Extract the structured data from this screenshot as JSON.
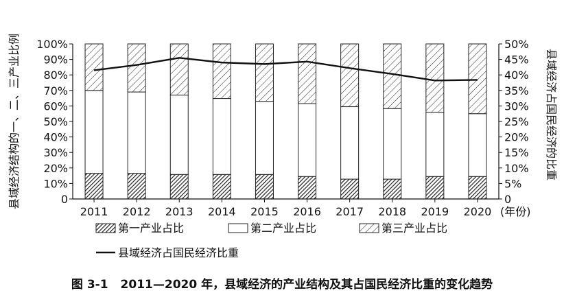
{
  "chart_data": {
    "type": "bar",
    "stacked": true,
    "categories": [
      "2011",
      "2012",
      "2013",
      "2014",
      "2015",
      "2016",
      "2017",
      "2018",
      "2019",
      "2020"
    ],
    "series": [
      {
        "name": "第一产业占比",
        "axis": "left",
        "pattern": "dense-hatch",
        "values": [
          16.5,
          16.5,
          15.8,
          15.8,
          15.8,
          14.5,
          12.8,
          12.8,
          14.5,
          14.5
        ]
      },
      {
        "name": "第二产业占比",
        "axis": "left",
        "pattern": "white",
        "values": [
          53.5,
          52.5,
          51.2,
          49.0,
          47.2,
          47.0,
          46.7,
          45.5,
          41.5,
          40.5
        ]
      },
      {
        "name": "第三产业占比",
        "axis": "left",
        "pattern": "sparse-hatch",
        "values": [
          30.0,
          31.0,
          33.0,
          35.2,
          37.0,
          38.5,
          40.5,
          41.7,
          44.0,
          45.0
        ]
      },
      {
        "name": "县域经济占国民经济比重",
        "axis": "right",
        "type": "line",
        "values": [
          41.5,
          43.2,
          45.5,
          44.0,
          43.5,
          44.3,
          42.2,
          40.3,
          38.2,
          38.4
        ]
      }
    ],
    "left_axis": {
      "label": "县域经济结构的一、二、三产业比例",
      "ticks": [
        "0",
        "10%",
        "20%",
        "30%",
        "40%",
        "50%",
        "60%",
        "70%",
        "80%",
        "90%",
        "100%"
      ],
      "ylim": [
        0,
        100
      ]
    },
    "right_axis": {
      "label": "县域经济占国民经济的比重",
      "ticks": [
        "0",
        "5%",
        "10%",
        "15%",
        "20%",
        "25%",
        "30%",
        "35%",
        "40%",
        "45%",
        "50%"
      ],
      "ylim": [
        0,
        50
      ]
    },
    "x_unit": "(年份)",
    "legend_position": "bottom",
    "grid": false
  },
  "caption": {
    "number": "图 3-1",
    "title": "2011—2020 年，县域经济的产业结构及其占国民经济比重的变化趋势"
  }
}
